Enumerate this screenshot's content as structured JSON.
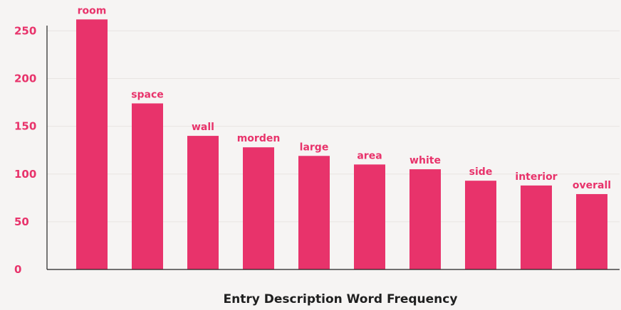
{
  "chart_data": {
    "type": "bar",
    "title": "",
    "xlabel": "Entry Description Word Frequency",
    "ylabel": "",
    "categories": [
      "room",
      "space",
      "wall",
      "morden",
      "large",
      "area",
      "white",
      "side",
      "interior",
      "overall"
    ],
    "values": [
      262,
      174,
      140,
      128,
      119,
      110,
      105,
      93,
      88,
      79
    ],
    "ylim": [
      0,
      260
    ],
    "yticks": [
      0,
      50,
      100,
      150,
      200,
      250
    ],
    "grid": true,
    "show_bar_labels": true,
    "colors": {
      "bar": "#e8336b",
      "tick": "#e8336b",
      "axis_title": "#1f1f1f",
      "background": "#f6f4f3",
      "grid": "#e8e4e2"
    }
  }
}
